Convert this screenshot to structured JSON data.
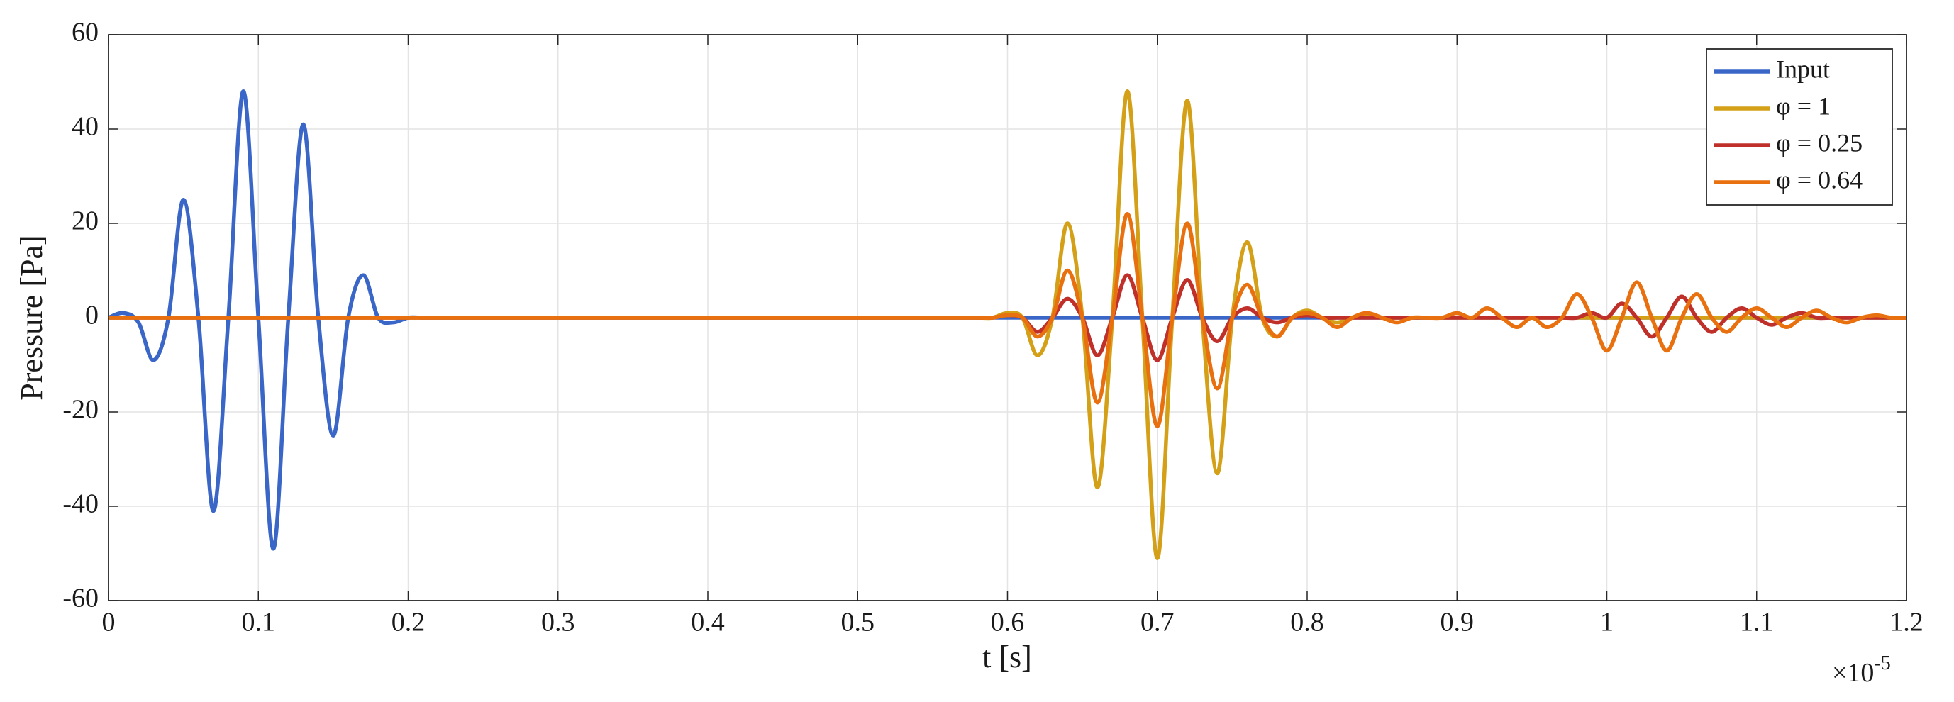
{
  "chart_data": {
    "type": "line",
    "xlabel": "t [s]",
    "ylabel": "Pressure [Pa]",
    "x_multiplier": "×10",
    "x_exponent": "-5",
    "x": [
      0,
      0.01,
      0.02,
      0.03,
      0.04,
      0.05,
      0.06,
      0.07,
      0.08,
      0.09,
      0.1,
      0.11,
      0.12,
      0.13,
      0.14,
      0.15,
      0.16,
      0.17,
      0.18,
      0.19,
      0.2,
      0.21,
      0.22,
      0.23,
      0.24,
      0.25,
      0.26,
      0.27,
      0.28,
      0.29,
      0.3,
      0.31,
      0.32,
      0.33,
      0.34,
      0.35,
      0.36,
      0.37,
      0.38,
      0.39,
      0.4,
      0.41,
      0.42,
      0.43,
      0.44,
      0.45,
      0.46,
      0.47,
      0.48,
      0.49,
      0.5,
      0.51,
      0.52,
      0.53,
      0.54,
      0.55,
      0.56,
      0.57,
      0.58,
      0.59,
      0.6,
      0.61,
      0.62,
      0.63,
      0.64,
      0.65,
      0.66,
      0.67,
      0.68,
      0.69,
      0.7,
      0.71,
      0.72,
      0.73,
      0.74,
      0.75,
      0.76,
      0.77,
      0.78,
      0.79,
      0.8,
      0.81,
      0.82,
      0.83,
      0.84,
      0.85,
      0.86,
      0.87,
      0.88,
      0.89,
      0.9,
      0.91,
      0.92,
      0.93,
      0.94,
      0.95,
      0.96,
      0.97,
      0.98,
      0.99,
      1,
      1.01,
      1.02,
      1.03,
      1.04,
      1.05,
      1.06,
      1.07,
      1.08,
      1.09,
      1.1,
      1.11,
      1.12,
      1.13,
      1.14,
      1.15,
      1.16,
      1.17,
      1.18,
      1.19,
      1.2
    ],
    "series": [
      {
        "name": "Input",
        "color": "#3a66c8",
        "values": [
          0,
          1,
          -1,
          -9,
          0,
          25,
          0,
          -41,
          0,
          48,
          0,
          -49,
          0,
          41,
          0,
          -25,
          0,
          9,
          0,
          -1,
          0,
          0,
          0,
          0,
          0,
          0,
          0,
          0,
          0,
          0,
          0,
          0,
          0,
          0,
          0,
          0,
          0,
          0,
          0,
          0,
          0,
          0,
          0,
          0,
          0,
          0,
          0,
          0,
          0,
          0,
          0,
          0,
          0,
          0,
          0,
          0,
          0,
          0,
          0,
          0,
          0,
          0,
          0,
          0,
          0,
          0,
          0,
          0,
          0,
          0,
          0,
          0,
          0,
          0,
          0,
          0,
          0,
          0,
          0,
          0,
          0,
          0,
          0,
          0,
          0,
          0,
          0,
          0,
          0,
          0,
          0,
          0,
          0,
          0,
          0,
          0,
          0,
          0,
          0,
          0,
          0,
          0,
          0,
          0,
          0,
          0,
          0,
          0,
          0,
          0,
          0,
          0,
          0,
          0,
          0,
          0,
          0,
          0,
          0,
          0,
          0
        ]
      },
      {
        "name": "φ = 1",
        "color": "#d4a017",
        "values": [
          0,
          0,
          0,
          0,
          0,
          0,
          0,
          0,
          0,
          0,
          0,
          0,
          0,
          0,
          0,
          0,
          0,
          0,
          0,
          0,
          0,
          0,
          0,
          0,
          0,
          0,
          0,
          0,
          0,
          0,
          0,
          0,
          0,
          0,
          0,
          0,
          0,
          0,
          0,
          0,
          0,
          0,
          0,
          0,
          0,
          0,
          0,
          0,
          0,
          0,
          0,
          0,
          0,
          0,
          0,
          0,
          0,
          0,
          0,
          0,
          1,
          0,
          -8,
          0,
          20,
          0,
          -36,
          0,
          48,
          0,
          -51,
          0,
          46,
          0,
          -33,
          0,
          16,
          0,
          -4,
          0,
          1.5,
          0,
          -1,
          0,
          0.5,
          0,
          0,
          0,
          0,
          0,
          0,
          0,
          0,
          0,
          0,
          0,
          0,
          0,
          0,
          0,
          0,
          0,
          0,
          0,
          0,
          0,
          0,
          0,
          0,
          0,
          0,
          0,
          0,
          0,
          0,
          0,
          0,
          0,
          0,
          0,
          0
        ]
      },
      {
        "name": "φ = 0.25",
        "color": "#c0302a",
        "values": [
          0,
          0,
          0,
          0,
          0,
          0,
          0,
          0,
          0,
          0,
          0,
          0,
          0,
          0,
          0,
          0,
          0,
          0,
          0,
          0,
          0,
          0,
          0,
          0,
          0,
          0,
          0,
          0,
          0,
          0,
          0,
          0,
          0,
          0,
          0,
          0,
          0,
          0,
          0,
          0,
          0,
          0,
          0,
          0,
          0,
          0,
          0,
          0,
          0,
          0,
          0,
          0,
          0,
          0,
          0,
          0,
          0,
          0,
          0,
          0,
          0.5,
          0,
          -3,
          0,
          4,
          0,
          -8,
          0,
          9,
          0,
          -9,
          0,
          8,
          0,
          -5,
          0,
          2,
          0,
          -1,
          0,
          0.5,
          0,
          0,
          0,
          0,
          0,
          0,
          0,
          0,
          0,
          0,
          0,
          0,
          0,
          0,
          0,
          0,
          0,
          0,
          1,
          0,
          3,
          0,
          -4,
          0,
          4.5,
          0,
          -3,
          0,
          2,
          0,
          -1.5,
          0,
          1,
          0,
          0,
          0,
          0,
          0,
          0,
          0
        ]
      },
      {
        "name": "φ = 0.64",
        "color": "#e8700f",
        "values": [
          0,
          0,
          0,
          0,
          0,
          0,
          0,
          0,
          0,
          0,
          0,
          0,
          0,
          0,
          0,
          0,
          0,
          0,
          0,
          0,
          0,
          0,
          0,
          0,
          0,
          0,
          0,
          0,
          0,
          0,
          0,
          0,
          0,
          0,
          0,
          0,
          0,
          0,
          0,
          0,
          0,
          0,
          0,
          0,
          0,
          0,
          0,
          0,
          0,
          0,
          0,
          0,
          0,
          0,
          0,
          0,
          0,
          0,
          0,
          0,
          0.5,
          0,
          -4,
          0,
          10,
          0,
          -18,
          0,
          22,
          0,
          -23,
          0,
          20,
          0,
          -15,
          0,
          7,
          0,
          -4,
          0,
          1,
          0,
          -2,
          0,
          1,
          0,
          -1,
          0,
          0,
          0,
          1,
          0,
          2,
          0,
          -2,
          0,
          -2,
          0,
          5,
          0,
          -7,
          0,
          7.5,
          0,
          -7,
          0,
          5,
          0,
          -3,
          0,
          2,
          0,
          -2,
          0,
          1.5,
          0,
          -1,
          0,
          0.5,
          0,
          0
        ]
      }
    ],
    "xlim": [
      0,
      1.2
    ],
    "xticks": [
      0,
      0.1,
      0.2,
      0.3,
      0.4,
      0.5,
      0.6,
      0.7,
      0.8,
      0.9,
      1,
      1.1,
      1.2
    ],
    "ylim": [
      -60,
      60
    ],
    "yticks": [
      -60,
      -40,
      -20,
      0,
      20,
      40,
      60
    ],
    "grid": true,
    "legend": "upper right"
  }
}
